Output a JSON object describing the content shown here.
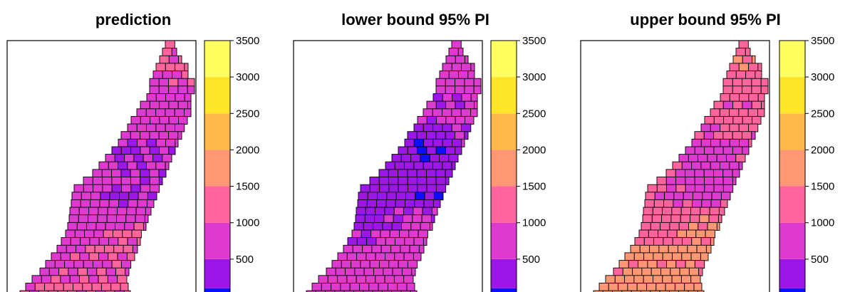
{
  "chart_data": [
    {
      "type": "heatmap",
      "title": "prediction",
      "xlabel": "",
      "ylabel": "",
      "grid": false,
      "legend_position": "right",
      "colorbar_ticks": [
        500,
        1000,
        1500,
        2000,
        2500,
        3000,
        3500
      ],
      "colorbar_tick_labels": [
        "500",
        "1000",
        "1500",
        "2000",
        "2500",
        "3000",
        "3500"
      ],
      "colorbar_range": [
        0,
        3500
      ],
      "estimated_cell_values": {
        "north_tip": 1100,
        "upper_arm": 850,
        "central_channel": 450,
        "shoulder": 800,
        "west_lobe": 900,
        "south_lobe": 1000,
        "east_spur": 1050,
        "overall_range": [
          350,
          1300
        ]
      }
    },
    {
      "type": "heatmap",
      "title": "lower bound 95% PI",
      "xlabel": "",
      "ylabel": "",
      "grid": false,
      "legend_position": "right",
      "colorbar_ticks": [
        500,
        1000,
        1500,
        2000,
        2500,
        3000,
        3500
      ],
      "colorbar_tick_labels": [
        "500",
        "1000",
        "1500",
        "2000",
        "2500",
        "3000",
        "3500"
      ],
      "colorbar_range": [
        0,
        3500
      ],
      "estimated_cell_values": {
        "north_tip": 750,
        "upper_arm": 550,
        "central_channel": 150,
        "shoulder": 450,
        "west_lobe": 600,
        "south_lobe": 650,
        "east_spur": 700,
        "overall_range": [
          50,
          900
        ]
      }
    },
    {
      "type": "heatmap",
      "title": "upper bound 95% PI",
      "xlabel": "",
      "ylabel": "",
      "grid": false,
      "legend_position": "right",
      "colorbar_ticks": [
        500,
        1000,
        1500,
        2000,
        2500,
        3000,
        3500
      ],
      "colorbar_tick_labels": [
        "500",
        "1000",
        "1500",
        "2000",
        "2500",
        "3000",
        "3500"
      ],
      "colorbar_range": [
        0,
        3500
      ],
      "estimated_cell_values": {
        "north_tip": 1450,
        "upper_arm": 1150,
        "central_channel": 750,
        "shoulder": 1250,
        "west_lobe": 1550,
        "south_lobe": 1650,
        "east_spur": 1650,
        "overall_range": [
          650,
          1900
        ]
      }
    }
  ],
  "colorbar_bins": [
    {
      "from": 0,
      "to": 100,
      "color": "#0D0DFF"
    },
    {
      "from": 100,
      "to": 500,
      "color": "#9C17E7"
    },
    {
      "from": 500,
      "to": 1000,
      "color": "#DE3ACF"
    },
    {
      "from": 1000,
      "to": 1500,
      "color": "#FF659C"
    },
    {
      "from": 1500,
      "to": 2000,
      "color": "#FF9674"
    },
    {
      "from": 2000,
      "to": 2500,
      "color": "#FFB94B"
    },
    {
      "from": 2500,
      "to": 3000,
      "color": "#FFE528"
    },
    {
      "from": 3000,
      "to": 3500,
      "color": "#FFFF60"
    }
  ],
  "colors": {
    "cell_border": "#000000",
    "outline": "#000000"
  }
}
